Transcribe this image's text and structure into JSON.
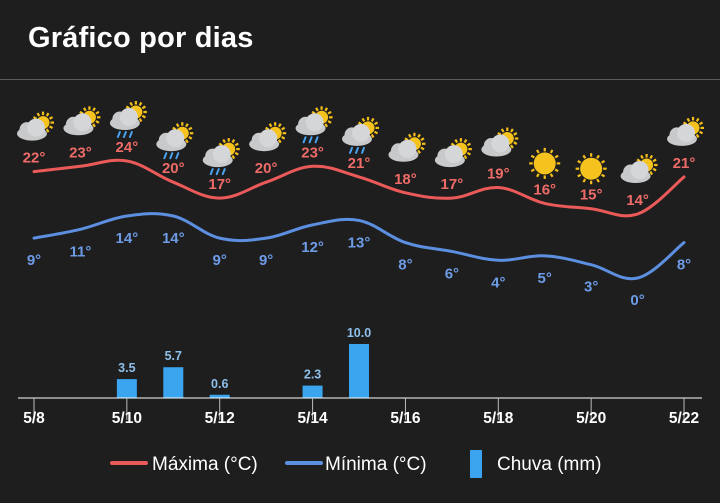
{
  "header": {
    "title": "Gráfico por dias"
  },
  "colors": {
    "max": "#ea5a59",
    "min": "#5c8fdf",
    "rain": "#3aa4ef",
    "axis": "#ffffff"
  },
  "chart_data": {
    "type": "line",
    "title": "",
    "x": [
      "5/8",
      "5/9",
      "5/10",
      "5/11",
      "5/12",
      "5/13",
      "5/14",
      "5/15",
      "5/16",
      "5/17",
      "5/18",
      "5/19",
      "5/20",
      "5/21",
      "5/22"
    ],
    "x_tick_labels": [
      "5/8",
      "5/10",
      "5/12",
      "5/14",
      "5/16",
      "5/18",
      "5/20",
      "5/22"
    ],
    "series": [
      {
        "name": "Máxima (°C)",
        "kind": "line",
        "unit": "°",
        "values": [
          22,
          23,
          24,
          20,
          17,
          20,
          23,
          21,
          18,
          17,
          19,
          16,
          15,
          14,
          21
        ]
      },
      {
        "name": "Mínima (°C)",
        "kind": "line",
        "unit": "°",
        "values": [
          9,
          11,
          14,
          14,
          9,
          9,
          12,
          13,
          8,
          6,
          4,
          5,
          3,
          0,
          8
        ]
      },
      {
        "name": "Chuva (mm)",
        "kind": "bar",
        "values": [
          0,
          0,
          3.5,
          5.7,
          0.6,
          0,
          2.3,
          10.0,
          0,
          0,
          0,
          0,
          0,
          0,
          0
        ],
        "labels": [
          "",
          "",
          "3.5",
          "5.7",
          "0.6",
          "",
          "2.3",
          "10.0",
          "",
          "",
          "",
          "",
          "",
          "",
          ""
        ]
      }
    ],
    "weather_icons": [
      "partly-cloudy-icon",
      "partly-cloudy-icon",
      "rain-sun-icon",
      "rain-sun-icon",
      "rain-sun-icon",
      "partly-cloudy-icon",
      "rain-sun-icon",
      "rain-sun-icon",
      "partly-cloudy-icon",
      "partly-cloudy-icon",
      "partly-cloudy-icon",
      "sunny-icon",
      "sunny-icon",
      "partly-cloudy-icon",
      "partly-cloudy-icon"
    ],
    "legend": [
      {
        "label": "Máxima (°C)",
        "symbol": "line",
        "color": "#ea5a59"
      },
      {
        "label": "Mínima (°C)",
        "symbol": "line",
        "color": "#5c8fdf"
      },
      {
        "label": "Chuva (mm)",
        "symbol": "bar",
        "color": "#3aa4ef"
      }
    ],
    "legend_position": "bottom",
    "grid": false
  }
}
